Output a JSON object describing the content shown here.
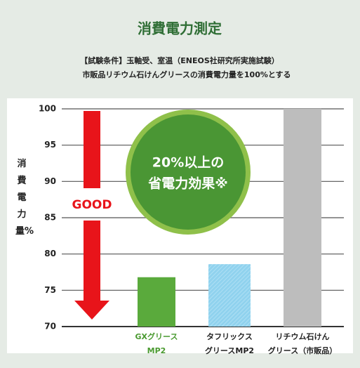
{
  "chart_data": {
    "type": "bar",
    "title": "消費電力測定",
    "subtitle": [
      "【試験条件】玉軸受、室温（ENEOS社研究所実施試験）",
      "市販品リチウム石けんグリースの消費電力量を100%とする"
    ],
    "y_label": "消費電力量%",
    "categories": [
      [
        "GXグリース",
        "MP2"
      ],
      [
        "タフリックス",
        "グリースMP2"
      ],
      [
        "リチウム石けん",
        "グリース（市販品）"
      ]
    ],
    "values": [
      76.8,
      78.6,
      100
    ],
    "colors": [
      "#5aaa3c",
      "#90d2ee",
      "#bdbdbd"
    ],
    "ylim": [
      70,
      100
    ],
    "yticks": [
      70,
      75,
      80,
      85,
      90,
      95,
      100
    ],
    "grid": true,
    "annotations": {
      "circle": [
        "20%以上の",
        "省電力効果※"
      ],
      "arrow": "GOOD"
    }
  }
}
